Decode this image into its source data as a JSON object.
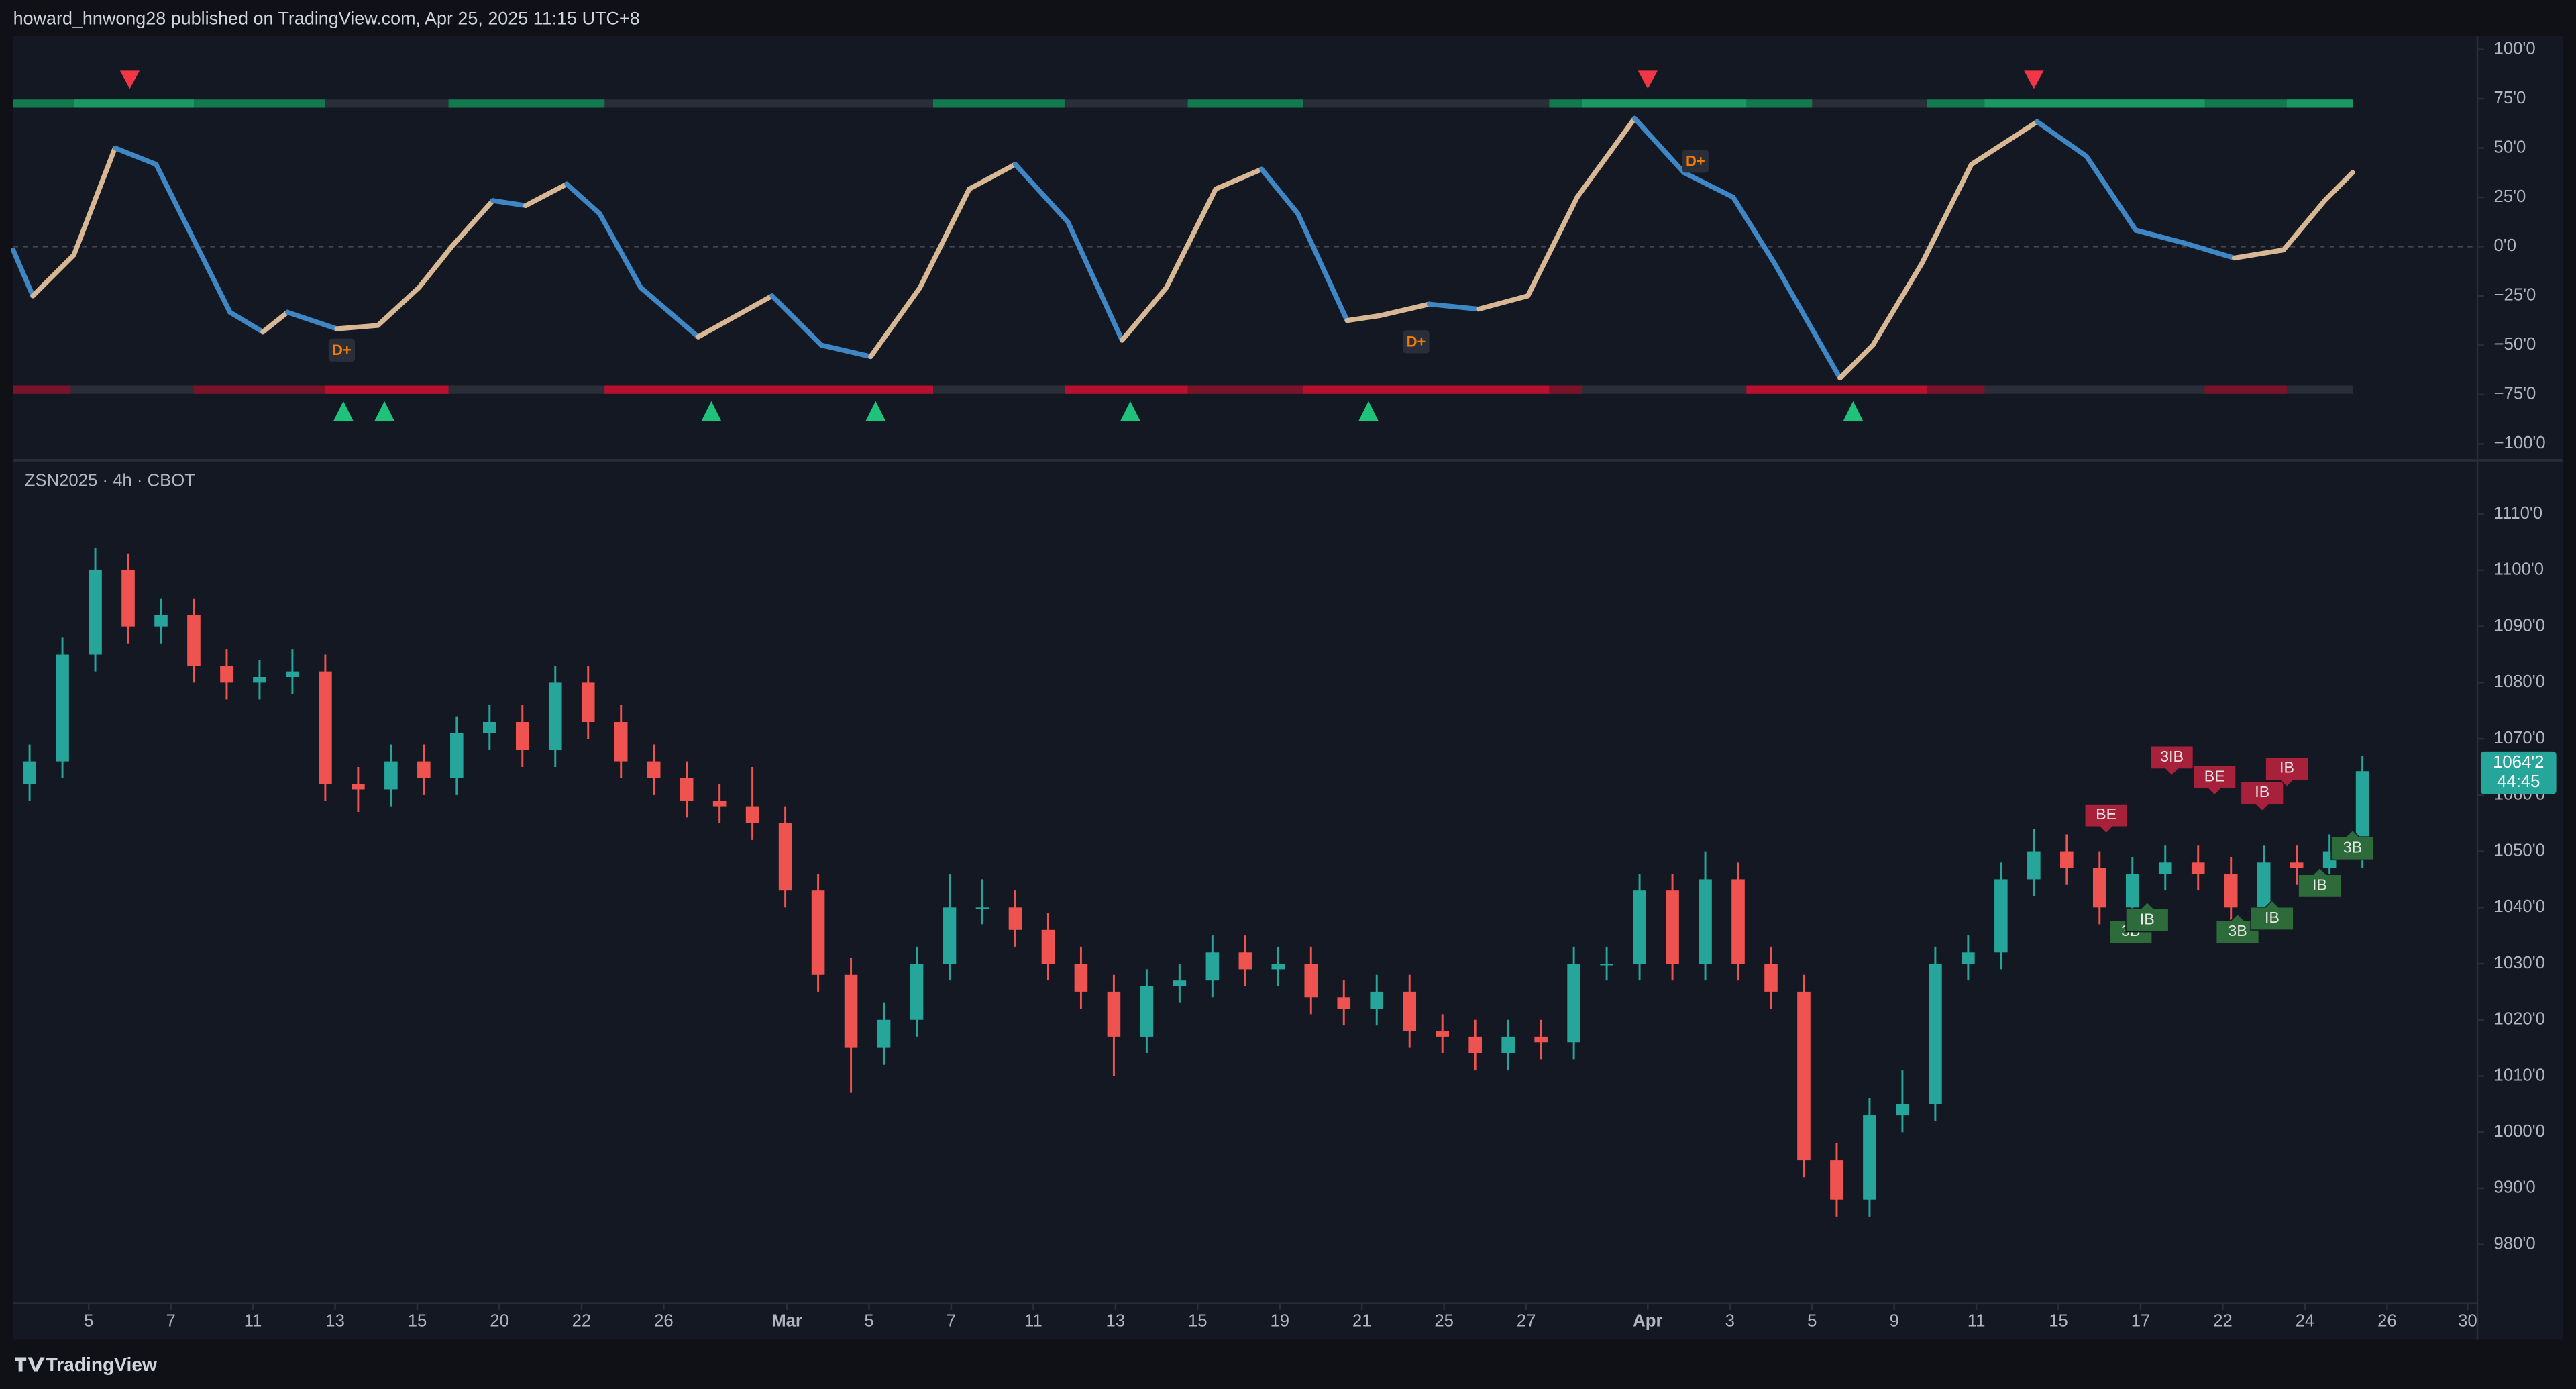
{
  "header": {
    "title": "howard_hnwong28 published on TradingView.com, Apr 25, 2025 11:15 UTC+8"
  },
  "footer": {
    "brand": "TradingView"
  },
  "chart_data": [
    {
      "type": "oscillator",
      "x": [
        -0.5,
        0.1,
        1.35,
        2.6,
        3.85,
        5.1,
        6.1,
        7.1,
        7.85,
        9.35,
        10.6,
        11.85,
        12.85,
        14.1,
        15.1,
        16.35,
        17.35,
        18.6,
        20.35,
        22.6,
        24.1,
        25.6,
        27.1,
        28.6,
        30,
        31.6,
        33.25,
        34.6,
        36.1,
        37.5,
        38.6,
        40.1,
        41.1,
        42.6,
        44.1,
        45.6,
        47.1,
        48.85,
        50.35,
        51.85,
        53.1,
        55.1,
        56.1,
        57.6,
        59.1,
        61.1,
        62.6,
        64.1,
        65.6,
        67.1,
        68.6,
        69.85,
        70.7
      ],
      "values": [
        -1.7,
        -25,
        -4.2,
        50,
        41.7,
        0,
        -33.3,
        -43.3,
        -33.3,
        -41.7,
        -40,
        -20.8,
        0,
        23.3,
        20.8,
        31.7,
        16.7,
        -20.8,
        -45.8,
        -25,
        -50,
        -55.8,
        -20.8,
        29.2,
        41.7,
        12.5,
        -47.5,
        -20.8,
        29.2,
        39.2,
        16.7,
        -37.5,
        -35,
        -29.2,
        -31.7,
        -25,
        25,
        65,
        37.5,
        25,
        -8.3,
        -66.7,
        -50,
        -8.3,
        41.7,
        63.3,
        45.8,
        8.3,
        1.7,
        -5.8,
        -1.7,
        23.3,
        37.5
      ],
      "rising_color": "#d8b894",
      "falling_color": "#3f86c4",
      "xlim": [
        -0.5,
        74.5
      ],
      "ylim": [
        -106.7,
        106.7
      ],
      "yticks": [
        {
          "value": 100,
          "label": "100'0"
        },
        {
          "value": 75,
          "label": "75'0"
        },
        {
          "value": 50,
          "label": "50'0"
        },
        {
          "value": 25,
          "label": "25'0"
        },
        {
          "value": 0,
          "label": "0'0"
        },
        {
          "value": -25,
          "label": "−25'0"
        },
        {
          "value": -50,
          "label": "−50'0"
        },
        {
          "value": -75,
          "label": "−75'0"
        },
        {
          "value": -100,
          "label": "−100'0"
        }
      ],
      "dashed_zero_line": true,
      "sell_signals": [
        3.05,
        49.25,
        61
      ],
      "buy_signals": [
        9.55,
        10.8,
        20.75,
        25.75,
        33.5,
        40.75,
        55.5
      ],
      "sell_color": "#f23645",
      "buy_color": "#1fc27a",
      "divergence_labels": [
        {
          "label": "D+",
          "x": 9.5,
          "y": -52.5
        },
        {
          "label": "D+",
          "x": 42.2,
          "y": -48.3
        },
        {
          "label": "D+",
          "x": 50.7,
          "y": 43.3
        }
      ]
    },
    {
      "type": "candlestick",
      "symbol": "ZSN2025 · 4h · CBOT",
      "x": [
        0,
        1,
        2,
        3,
        4,
        5,
        6,
        7,
        8,
        9,
        10,
        11,
        12,
        13,
        14,
        15,
        16,
        17,
        18,
        19,
        20,
        21,
        22,
        23,
        24,
        25,
        26,
        27,
        28,
        29,
        30,
        31,
        32,
        33,
        34,
        35,
        36,
        37,
        38,
        39,
        40,
        41,
        42,
        43,
        44,
        45,
        46,
        47,
        48,
        49,
        50,
        51,
        52,
        53,
        54,
        55,
        56,
        57,
        58,
        59,
        60,
        61,
        62,
        63,
        64,
        65,
        66,
        67,
        68,
        69,
        70,
        71
      ],
      "open": [
        1062,
        1066,
        1085,
        1100,
        1090,
        1092,
        1083,
        1080,
        1081,
        1082,
        1062,
        1061,
        1066,
        1063,
        1071,
        1073,
        1068,
        1080,
        1073,
        1066,
        1063,
        1059,
        1058,
        1055,
        1043,
        1028,
        1015,
        1020,
        1030,
        1040,
        1040,
        1036,
        1030,
        1025,
        1017,
        1026,
        1027,
        1032,
        1029,
        1030,
        1024,
        1022,
        1025,
        1018,
        1017,
        1014,
        1017,
        1016,
        1030,
        1030,
        1043,
        1030,
        1045,
        1030,
        1025,
        995,
        988,
        1003,
        1005,
        1030,
        1032,
        1045,
        1050,
        1047,
        1040,
        1046,
        1048,
        1046,
        1040,
        1048,
        1047,
        1050
      ],
      "high": [
        1069,
        1088,
        1104,
        1103,
        1095,
        1095,
        1086,
        1084,
        1086,
        1085,
        1065,
        1069,
        1069,
        1074,
        1076,
        1076,
        1083,
        1083,
        1076,
        1069,
        1066,
        1062,
        1065,
        1058,
        1046,
        1031,
        1023,
        1033,
        1046,
        1045,
        1043,
        1039,
        1033,
        1028,
        1029,
        1030,
        1035,
        1035,
        1033,
        1033,
        1027,
        1028,
        1028,
        1021,
        1020,
        1020,
        1020,
        1033,
        1033,
        1046,
        1046,
        1050,
        1048,
        1033,
        1028,
        998,
        1006,
        1011,
        1033,
        1035,
        1048,
        1054,
        1053,
        1050,
        1049,
        1051,
        1051,
        1049,
        1051,
        1051,
        1053,
        1067
      ],
      "low": [
        1059,
        1063,
        1082,
        1087,
        1087,
        1080,
        1077,
        1077,
        1078,
        1059,
        1057,
        1058,
        1060,
        1060,
        1068,
        1065,
        1065,
        1070,
        1063,
        1060,
        1056,
        1055,
        1052,
        1040,
        1025,
        1007,
        1012,
        1017,
        1027,
        1037,
        1033,
        1027,
        1022,
        1010,
        1014,
        1023,
        1024,
        1026,
        1026,
        1021,
        1019,
        1019,
        1015,
        1014,
        1011,
        1011,
        1013,
        1013,
        1027,
        1027,
        1027,
        1027,
        1027,
        1022,
        992,
        985,
        985,
        1000,
        1002,
        1027,
        1029,
        1042,
        1044,
        1037,
        1037,
        1043,
        1043,
        1037,
        1037,
        1044,
        1044,
        1047
      ],
      "close": [
        1066,
        1085,
        1100,
        1090,
        1092,
        1083,
        1080,
        1081,
        1082,
        1062,
        1061,
        1066,
        1063,
        1071,
        1073,
        1068,
        1080,
        1073,
        1066,
        1063,
        1059,
        1058,
        1055,
        1043,
        1028,
        1015,
        1020,
        1030,
        1040,
        1040,
        1036,
        1030,
        1025,
        1017,
        1026,
        1027,
        1032,
        1029,
        1030,
        1024,
        1022,
        1025,
        1018,
        1017,
        1014,
        1017,
        1016,
        1030,
        1030,
        1043,
        1030,
        1045,
        1030,
        1025,
        995,
        988,
        1003,
        1005,
        1030,
        1032,
        1045,
        1050,
        1047,
        1040,
        1046,
        1048,
        1046,
        1040,
        1048,
        1047,
        1050,
        1064.25
      ],
      "up_color": "#26a69a",
      "down_color": "#ef5350",
      "last_price_label": "1064'2",
      "countdown": "44:45",
      "xlim": [
        -0.5,
        74.5
      ],
      "xticks": [
        {
          "value": 1.8,
          "label": "5"
        },
        {
          "value": 4.3,
          "label": "7"
        },
        {
          "value": 6.8,
          "label": "11"
        },
        {
          "value": 9.3,
          "label": "13"
        },
        {
          "value": 11.8,
          "label": "15"
        },
        {
          "value": 14.3,
          "label": "20"
        },
        {
          "value": 16.8,
          "label": "22"
        },
        {
          "value": 19.3,
          "label": "26"
        },
        {
          "value": 23.05,
          "label": "Mar"
        },
        {
          "value": 25.55,
          "label": "5"
        },
        {
          "value": 28.05,
          "label": "7"
        },
        {
          "value": 30.55,
          "label": "11"
        },
        {
          "value": 33.05,
          "label": "13"
        },
        {
          "value": 35.55,
          "label": "15"
        },
        {
          "value": 38.05,
          "label": "19"
        },
        {
          "value": 40.55,
          "label": "21"
        },
        {
          "value": 43.05,
          "label": "25"
        },
        {
          "value": 45.55,
          "label": "27"
        },
        {
          "value": 49.25,
          "label": "Apr"
        },
        {
          "value": 51.75,
          "label": "3"
        },
        {
          "value": 54.25,
          "label": "5"
        },
        {
          "value": 56.75,
          "label": "9"
        },
        {
          "value": 59.25,
          "label": "11"
        },
        {
          "value": 61.75,
          "label": "15"
        },
        {
          "value": 64.25,
          "label": "17"
        },
        {
          "value": 66.75,
          "label": "22"
        },
        {
          "value": 69.25,
          "label": "24"
        },
        {
          "value": 71.75,
          "label": "26"
        },
        {
          "value": 74.2,
          "label": "30"
        }
      ],
      "ylim": [
        969.5,
        1119
      ],
      "yticks": [
        {
          "value": 1110,
          "label": "1110'0"
        },
        {
          "value": 1100,
          "label": "1100'0"
        },
        {
          "value": 1090,
          "label": "1090'0"
        },
        {
          "value": 1080,
          "label": "1080'0"
        },
        {
          "value": 1070,
          "label": "1070'0"
        },
        {
          "value": 1060,
          "label": "1060'0"
        },
        {
          "value": 1050,
          "label": "1050'0"
        },
        {
          "value": 1040,
          "label": "1040'0"
        },
        {
          "value": 1030,
          "label": "1030'0"
        },
        {
          "value": 1020,
          "label": "1020'0"
        },
        {
          "value": 1010,
          "label": "1010'0"
        },
        {
          "value": 1000,
          "label": "1000'0"
        },
        {
          "value": 990,
          "label": "990'0"
        },
        {
          "value": 980,
          "label": "980'0"
        }
      ],
      "bearish_labels": [
        {
          "label": "BE",
          "x": 63.2,
          "y": 1055.8
        },
        {
          "label": "3IB",
          "x": 65.2,
          "y": 1066.1
        },
        {
          "label": "BE",
          "x": 66.5,
          "y": 1062.6
        },
        {
          "label": "IB",
          "x": 67.95,
          "y": 1059.8
        },
        {
          "label": "IB",
          "x": 68.7,
          "y": 1064.1
        }
      ],
      "bullish_labels": [
        {
          "label": "3B",
          "x": 63.95,
          "y": 1036.2
        },
        {
          "label": "IB",
          "x": 64.45,
          "y": 1038.3
        },
        {
          "label": "3B",
          "x": 67.2,
          "y": 1036.2
        },
        {
          "label": "IB",
          "x": 68.25,
          "y": 1038.6
        },
        {
          "label": "IB",
          "x": 69.7,
          "y": 1044.4
        },
        {
          "label": "3B",
          "x": 70.7,
          "y": 1051.1
        }
      ],
      "bearish_color": "#a8213a",
      "bullish_color": "#2e6b3a"
    }
  ]
}
